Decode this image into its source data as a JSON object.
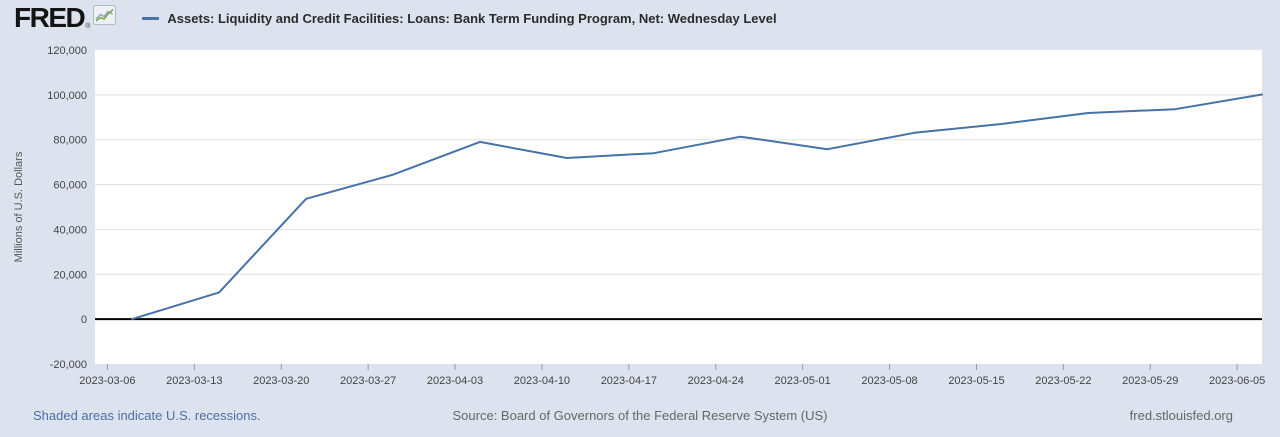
{
  "header": {
    "logo_text": "FRED",
    "logo_reg": "®"
  },
  "footer": {
    "recession_note": "Shaded areas indicate U.S. recessions.",
    "source": "Source: Board of Governors of the Federal Reserve System (US)",
    "site": "fred.stlouisfed.org"
  },
  "colors": {
    "background": "#dde3ee",
    "plot_background": "#ffffff",
    "series_line": "#4572a7",
    "grid": "#e0e0e0",
    "zero_line": "#000000",
    "axis_text": "#444444",
    "tick_mark": "#999999",
    "link": "#4a6fa5",
    "muted_text": "#666666",
    "icon_line_green": "#6f9e3f",
    "icon_line_blue": "#8aa0b4"
  },
  "chart_data": {
    "type": "line",
    "title": "Assets: Liquidity and Credit Facilities: Loans: Bank Term Funding Program, Net: Wednesday Level",
    "ylabel": "Millions of U.S. Dollars",
    "xlabel": "",
    "x": [
      "2023-03-08",
      "2023-03-15",
      "2023-03-22",
      "2023-03-29",
      "2023-04-05",
      "2023-04-12",
      "2023-04-19",
      "2023-04-26",
      "2023-05-03",
      "2023-05-10",
      "2023-05-17",
      "2023-05-24",
      "2023-05-31",
      "2023-06-07"
    ],
    "series": [
      {
        "name": "Assets: Liquidity and Credit Facilities: Loans: Bank Term Funding Program, Net: Wednesday Level",
        "color": "#4572a7",
        "values": [
          0,
          11943,
          53669,
          64403,
          79021,
          71837,
          73982,
          81327,
          75778,
          83101,
          87006,
          91907,
          93615,
          100161
        ]
      }
    ],
    "ylim": [
      -20000,
      120000
    ],
    "y_ticks": [
      120000,
      100000,
      80000,
      60000,
      40000,
      20000,
      0,
      -20000
    ],
    "xlim": [
      "2023-03-05",
      "2023-06-07"
    ],
    "x_ticks": [
      "2023-03-06",
      "2023-03-13",
      "2023-03-20",
      "2023-03-27",
      "2023-04-03",
      "2023-04-10",
      "2023-04-17",
      "2023-04-24",
      "2023-05-01",
      "2023-05-08",
      "2023-05-15",
      "2023-05-22",
      "2023-05-29",
      "2023-06-05"
    ],
    "grid": true,
    "zero_line": true,
    "legend_position": "top-left"
  }
}
